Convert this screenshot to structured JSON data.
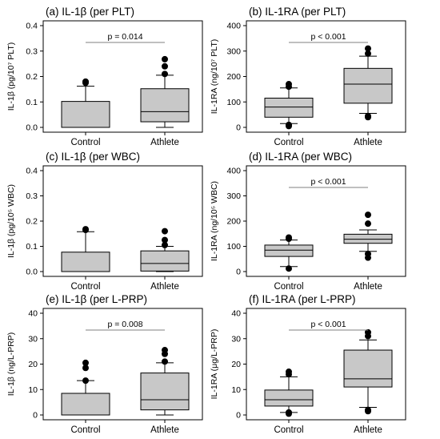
{
  "chart_data": [
    {
      "type": "box",
      "title": "(a) IL-1β (per PLT)",
      "ylabel": "IL-1β (pg/10⁷ PLT)",
      "ylim": [
        0,
        0.4
      ],
      "yticks": [
        "0.0",
        "0.1",
        "0.2",
        "0.3",
        "0.4"
      ],
      "tick_values": [
        0,
        0.1,
        0.2,
        0.3,
        0.4
      ],
      "categories": [
        "Control",
        "Athlete"
      ],
      "boxes": [
        {
          "q1": 0.0,
          "median": 0.0,
          "q3": 0.102,
          "whisker_low": 0.0,
          "whisker_high": 0.162,
          "outliers": [
            0.175,
            0.18
          ]
        },
        {
          "q1": 0.022,
          "median": 0.062,
          "q3": 0.152,
          "whisker_low": 0.0,
          "whisker_high": 0.205,
          "outliers": [
            0.21,
            0.24,
            0.268
          ]
        }
      ],
      "annotation": "p = 0.014"
    },
    {
      "type": "box",
      "title": "(b) IL-1RA (per PLT)",
      "ylabel": "IL-1RA (ng/10⁷ PLT)",
      "ylim": [
        0,
        400
      ],
      "yticks": [
        "0",
        "100",
        "200",
        "300",
        "400"
      ],
      "tick_values": [
        0,
        100,
        200,
        300,
        400
      ],
      "categories": [
        "Control",
        "Athlete"
      ],
      "boxes": [
        {
          "q1": 40,
          "median": 80,
          "q3": 115,
          "whisker_low": 15,
          "whisker_high": 155,
          "outliers": [
            5,
            10,
            160,
            170
          ]
        },
        {
          "q1": 95,
          "median": 170,
          "q3": 232,
          "whisker_low": 55,
          "whisker_high": 280,
          "outliers": [
            40,
            45,
            290,
            310
          ]
        }
      ],
      "annotation": "p < 0.001"
    },
    {
      "type": "box",
      "title": "(c) IL-1β (per WBC)",
      "ylabel": "IL-1β (pg/10⁵ WBC)",
      "ylim": [
        0,
        0.4
      ],
      "yticks": [
        "0.0",
        "0.1",
        "0.2",
        "0.3",
        "0.4"
      ],
      "tick_values": [
        0,
        0.1,
        0.2,
        0.3,
        0.4
      ],
      "categories": [
        "Control",
        "Athlete"
      ],
      "boxes": [
        {
          "q1": 0.0,
          "median": 0.0,
          "q3": 0.077,
          "whisker_low": 0.0,
          "whisker_high": 0.158,
          "outliers": [
            0.165,
            0.168
          ]
        },
        {
          "q1": 0.002,
          "median": 0.032,
          "q3": 0.082,
          "whisker_low": 0.0,
          "whisker_high": 0.1,
          "outliers": [
            0.105,
            0.125,
            0.16
          ]
        }
      ],
      "annotation": ""
    },
    {
      "type": "box",
      "title": "(d) IL-1RA (per WBC)",
      "ylabel": "IL-1RA (ng/10⁵ WBC)",
      "ylim": [
        0,
        400
      ],
      "yticks": [
        "0",
        "100",
        "200",
        "300",
        "400"
      ],
      "tick_values": [
        0,
        100,
        200,
        300,
        400
      ],
      "categories": [
        "Control",
        "Athlete"
      ],
      "boxes": [
        {
          "q1": 60,
          "median": 85,
          "q3": 105,
          "whisker_low": 20,
          "whisker_high": 125,
          "outliers": [
            12,
            130,
            135
          ]
        },
        {
          "q1": 112,
          "median": 128,
          "q3": 148,
          "whisker_low": 80,
          "whisker_high": 165,
          "outliers": [
            55,
            70,
            190,
            225
          ]
        }
      ],
      "annotation": "p < 0.001"
    },
    {
      "type": "box",
      "title": "(e) IL-1β (per L-PRP)",
      "ylabel": "IL-1β (ng/L-PRP)",
      "ylim": [
        0,
        40
      ],
      "yticks": [
        "0",
        "10",
        "20",
        "30",
        "40"
      ],
      "tick_values": [
        0,
        10,
        20,
        30,
        40
      ],
      "categories": [
        "Control",
        "Athlete"
      ],
      "boxes": [
        {
          "q1": 0.0,
          "median": 0.0,
          "q3": 8.5,
          "whisker_low": 0.0,
          "whisker_high": 13.5,
          "outliers": [
            13.5,
            18.5,
            20.5
          ]
        },
        {
          "q1": 2.0,
          "median": 6.0,
          "q3": 16.5,
          "whisker_low": 0.0,
          "whisker_high": 20.5,
          "outliers": [
            21.0,
            24.0,
            25.5
          ]
        }
      ],
      "annotation": "p = 0.008"
    },
    {
      "type": "box",
      "title": "(f) IL-1RA (per L-PRP)",
      "ylabel": "IL-1RA (μg/L-PRP)",
      "ylim": [
        0,
        40
      ],
      "yticks": [
        "0",
        "10",
        "20",
        "30",
        "40"
      ],
      "tick_values": [
        0,
        10,
        20,
        30,
        40
      ],
      "categories": [
        "Control",
        "Athlete"
      ],
      "boxes": [
        {
          "q1": 3.5,
          "median": 6.0,
          "q3": 9.8,
          "whisker_low": 1.0,
          "whisker_high": 15.0,
          "outliers": [
            0.5,
            1.0,
            16.0,
            17.0
          ]
        },
        {
          "q1": 11.0,
          "median": 14.2,
          "q3": 25.5,
          "whisker_low": 3.0,
          "whisker_high": 29.5,
          "outliers": [
            1.5,
            2.0,
            31.0,
            32.5
          ]
        }
      ],
      "annotation": "p < 0.001"
    }
  ]
}
